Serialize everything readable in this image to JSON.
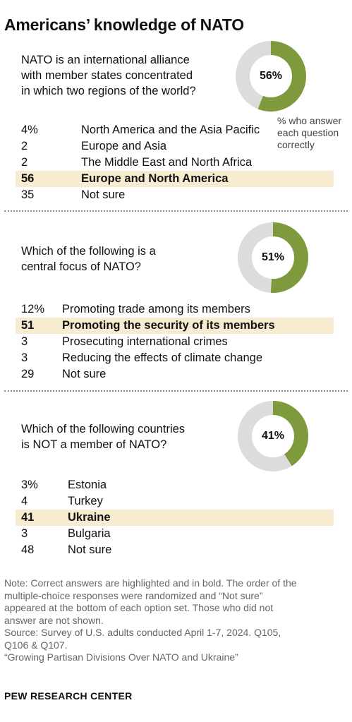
{
  "title": "Americans’ knowledge of NATO",
  "colors": {
    "correct": "#7f9a3c",
    "incorrect": "#dcdcdc",
    "highlight": "#f8ecd0"
  },
  "donut_note_lines": [
    "% who answer",
    "each question",
    "correctly"
  ],
  "chart_data": [
    {
      "type": "pie",
      "question_lines": [
        "NATO is an international alliance",
        "with member states concentrated",
        "in which two regions of the world?"
      ],
      "correct_pct": 56,
      "correct_label": "56%",
      "options": [
        {
          "value": "4%",
          "label": "North America and the Asia Pacific",
          "correct": false
        },
        {
          "value": "2",
          "label": "Europe and Asia",
          "correct": false
        },
        {
          "value": "2",
          "label": "The Middle East and North Africa",
          "correct": false
        },
        {
          "value": "56",
          "label": "Europe and North America",
          "correct": true
        },
        {
          "value": "35",
          "label": "Not sure",
          "correct": false
        }
      ]
    },
    {
      "type": "pie",
      "question_lines": [
        "Which of the following is a",
        "central focus of NATO?"
      ],
      "correct_pct": 51,
      "correct_label": "51%",
      "options": [
        {
          "value": "12%",
          "label": "Promoting trade among its members",
          "correct": false
        },
        {
          "value": "51",
          "label": "Promoting the security of its members",
          "correct": true
        },
        {
          "value": "3",
          "label": "Prosecuting international crimes",
          "correct": false
        },
        {
          "value": "3",
          "label": "Reducing the effects of climate change",
          "correct": false
        },
        {
          "value": "29",
          "label": "Not sure",
          "correct": false
        }
      ]
    },
    {
      "type": "pie",
      "question_lines": [
        "Which of the following countries",
        "is NOT a member of NATO?"
      ],
      "correct_pct": 41,
      "correct_label": "41%",
      "options": [
        {
          "value": "3%",
          "label": "Estonia",
          "correct": false
        },
        {
          "value": "4",
          "label": "Turkey",
          "correct": false
        },
        {
          "value": "41",
          "label": "Ukraine",
          "correct": true
        },
        {
          "value": "3",
          "label": "Bulgaria",
          "correct": false
        },
        {
          "value": "48",
          "label": "Not sure",
          "correct": false
        }
      ]
    }
  ],
  "note_lines": [
    "Note: Correct answers are highlighted and in bold. The order of the",
    "multiple-choice responses were randomized and “Not sure”",
    "appeared at the bottom of each option set. Those who did not",
    "answer are not shown.",
    "Source: Survey of U.S. adults conducted April 1-7, 2024. Q105,",
    "Q106 & Q107.",
    "“Growing Partisan Divisions Over NATO and Ukraine”"
  ],
  "brand": "PEW RESEARCH CENTER"
}
